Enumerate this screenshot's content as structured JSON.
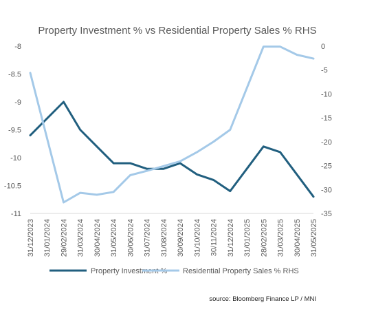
{
  "chart_data": {
    "type": "line",
    "title": "Property Investment % vs Residential Property Sales %  RHS",
    "source": "source: Bloomberg Finance LP / MNI",
    "categories": [
      "31/12/2023",
      "31/01/2024",
      "29/02/2024",
      "31/03/2024",
      "30/04/2024",
      "31/05/2024",
      "30/06/2024",
      "31/07/2024",
      "31/08/2024",
      "30/09/2024",
      "31/10/2024",
      "30/11/2024",
      "31/12/2024",
      "31/01/2025",
      "28/02/2025",
      "31/03/2025",
      "30/04/2025",
      "31/05/2025"
    ],
    "y_left": {
      "min": -11,
      "max": -8,
      "ticks": [
        "-8",
        "-8.5",
        "-9",
        "-9.5",
        "-10",
        "-10.5",
        "-11"
      ],
      "tick_values": [
        -8,
        -8.5,
        -9,
        -9.5,
        -10,
        -10.5,
        -11
      ]
    },
    "y_right": {
      "min": -35,
      "max": 0,
      "ticks": [
        "0",
        "-5",
        "-10",
        "-15",
        "-20",
        "-25",
        "-30",
        "-35"
      ],
      "tick_values": [
        0,
        -5,
        -10,
        -15,
        -20,
        -25,
        -30,
        -35
      ]
    },
    "series": [
      {
        "name": "Property Investment %",
        "axis": "left",
        "color": "#215f7f",
        "values": [
          -9.6,
          -9.3,
          -9.0,
          -9.5,
          -9.8,
          -10.1,
          -10.1,
          -10.2,
          -10.2,
          -10.1,
          -10.3,
          -10.4,
          -10.6,
          -10.2,
          -9.8,
          -9.9,
          -10.3,
          -10.7
        ]
      },
      {
        "name": "Residential Property Sales % RHS",
        "axis": "right",
        "color": "#a4c9e8",
        "values": [
          -5.6,
          null,
          -32.7,
          -30.7,
          -31.1,
          -30.5,
          -27.0,
          -26.1,
          -25.1,
          -24.1,
          -22.2,
          -20.0,
          -17.5,
          null,
          -0.1,
          -0.1,
          -1.8,
          -2.6
        ]
      }
    ],
    "legend_position": "bottom",
    "grid": false
  }
}
